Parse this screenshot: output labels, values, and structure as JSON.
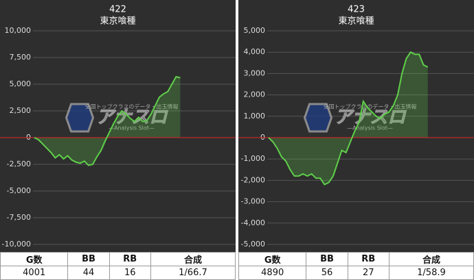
{
  "chart_data": [
    {
      "type": "line",
      "title": "422",
      "subtitle": "東京喰種",
      "series": [
        {
          "name": null,
          "color": "#5fd04a",
          "values": [
            0,
            -200,
            -600,
            -1000,
            -1400,
            -1900,
            -1600,
            -2000,
            -1700,
            -2100,
            -2300,
            -2400,
            -2200,
            -2600,
            -2500,
            -1800,
            -1200,
            -300,
            500,
            1300,
            2000,
            2500,
            2200,
            1800,
            1500,
            1900,
            1500,
            1600,
            2200,
            3000,
            3800,
            4100,
            4300,
            5000,
            5700,
            5600
          ]
        }
      ],
      "ylim": [
        -10000,
        10000
      ],
      "yticks": [
        {
          "value": -10000,
          "label": "-10,000"
        },
        {
          "value": -7500,
          "label": "-7,500"
        },
        {
          "value": -5000,
          "label": "-5,000"
        },
        {
          "value": -2500,
          "label": "-2,500"
        },
        0,
        {
          "value": 2500,
          "label": "2,500"
        },
        {
          "value": 5000,
          "label": "5,000"
        },
        {
          "value": 7500,
          "label": "7,500"
        },
        {
          "value": 10000,
          "label": "10,000"
        }
      ],
      "grid": true,
      "zero_line_color": "#c0282a"
    },
    {
      "type": "line",
      "title": "423",
      "subtitle": "東京喰種",
      "series": [
        {
          "name": null,
          "color": "#5fd04a",
          "values": [
            0,
            -200,
            -500,
            -900,
            -1100,
            -1500,
            -1800,
            -1800,
            -1700,
            -1800,
            -1700,
            -1900,
            -1900,
            -2200,
            -2100,
            -1800,
            -1200,
            -600,
            -700,
            -200,
            300,
            700,
            1700,
            1400,
            1200,
            1000,
            900,
            1100,
            1200,
            1500,
            2000,
            3000,
            3700,
            4000,
            3900,
            3900,
            3400,
            3300
          ]
        }
      ],
      "ylim": [
        -5000,
        5000
      ],
      "yticks": [
        {
          "value": -5000,
          "label": "-5,000"
        },
        {
          "value": -4000,
          "label": "-4,000"
        },
        {
          "value": -3000,
          "label": "-3,000"
        },
        {
          "value": -2000,
          "label": "-2,000"
        },
        {
          "value": -1000,
          "label": "-1,000"
        },
        0,
        {
          "value": 1000,
          "label": "1,000"
        },
        {
          "value": 2000,
          "label": "2,000"
        },
        {
          "value": 3000,
          "label": "3,000"
        },
        {
          "value": 4000,
          "label": "4,000"
        },
        {
          "value": 5000,
          "label": "5,000"
        }
      ],
      "grid": true,
      "zero_line_color": "#c0282a"
    }
  ],
  "watermark": {
    "logo": "アナスロ",
    "tagline": "—Analysis Slot—",
    "caption": "全国トップクラスのデータ・出玉情報"
  },
  "tables": [
    {
      "header": [
        "G数",
        "BB",
        "RB",
        "合成"
      ],
      "row": [
        "4001",
        "44",
        "16",
        "1/66.7"
      ]
    },
    {
      "header": [
        "G数",
        "BB",
        "RB",
        "合成"
      ],
      "row": [
        "4890",
        "56",
        "27",
        "1/58.9"
      ]
    }
  ]
}
